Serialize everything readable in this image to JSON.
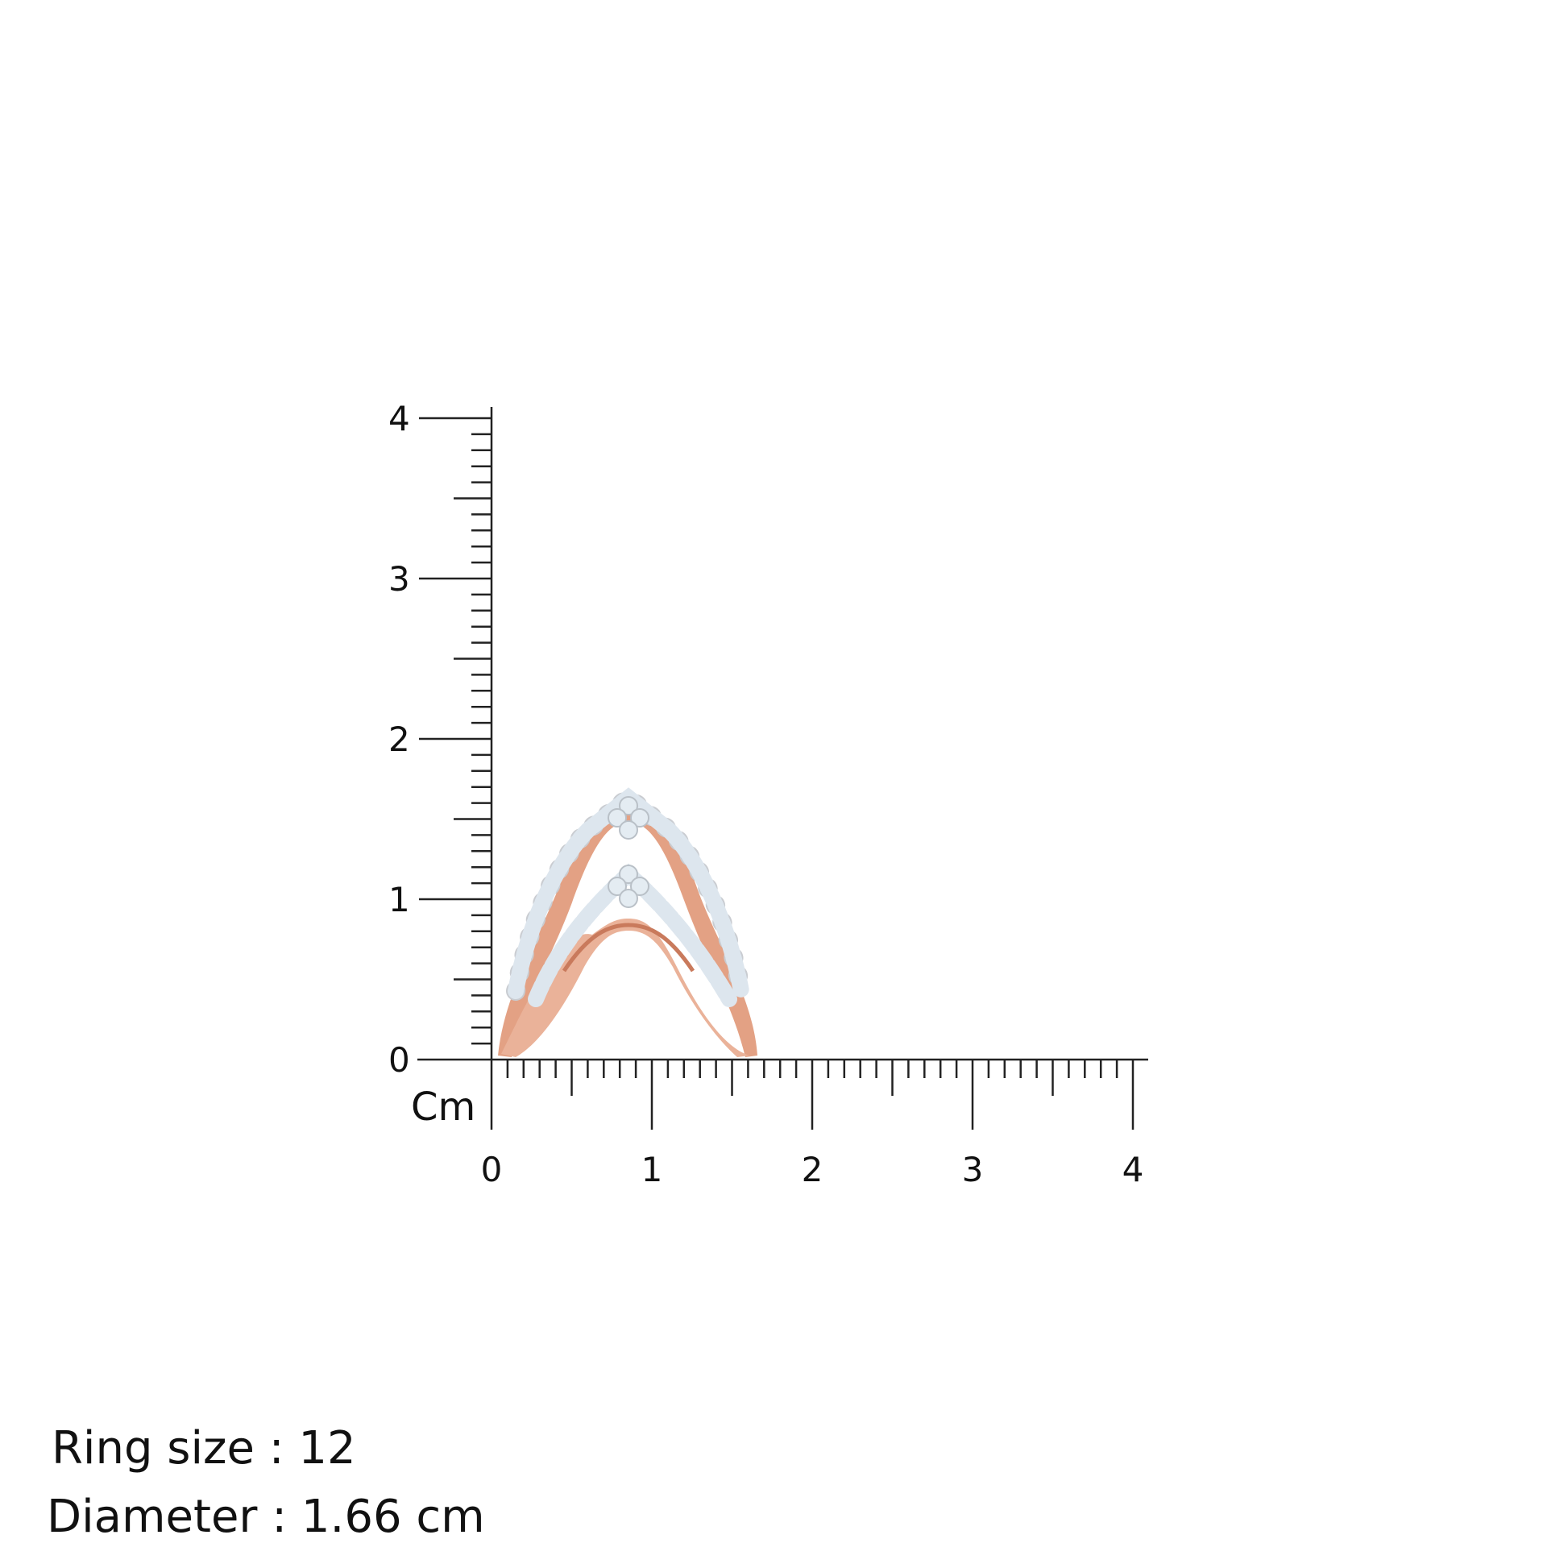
{
  "ruler": {
    "unit_label": "Cm",
    "x_labels": [
      "0",
      "1",
      "2",
      "3",
      "4"
    ],
    "y_labels": [
      "0",
      "1",
      "2",
      "3",
      "4"
    ],
    "max_cm": 4,
    "minor_divisions_per_cm": 10
  },
  "product": {
    "metal_color": "#e3a184",
    "metal_highlight": "#f6cdb8",
    "stone_color": "#dde6ee",
    "setting_color": "#c9ccd1"
  },
  "info": {
    "ring_size": "Ring size : 12",
    "diameter": "Diameter : 1.66 cm"
  }
}
